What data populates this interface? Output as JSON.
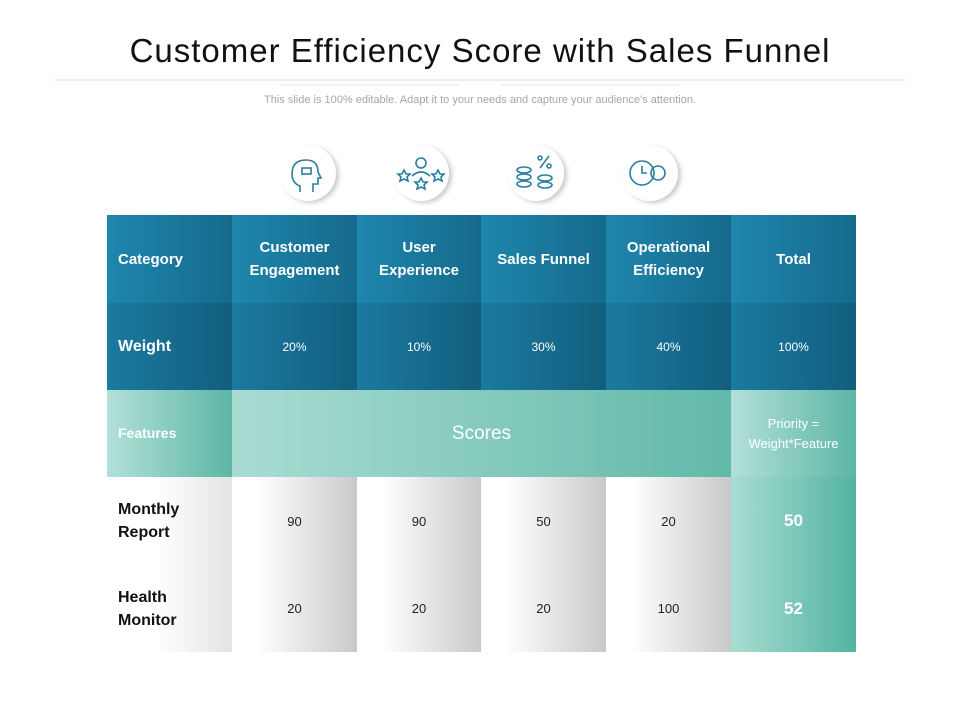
{
  "title": "Customer Efficiency Score with Sales Funnel",
  "subtitle": "This slide is 100% editable. Adapt it to your needs and capture your audience's attention.",
  "table": {
    "header": [
      "Category",
      "Customer Engagement",
      "User Experience",
      "Sales Funnel",
      "Operational Efficiency",
      "Total"
    ],
    "weight": {
      "label": "Weight",
      "values": [
        "20%",
        "10%",
        "30%",
        "40%",
        "100%"
      ]
    },
    "features": {
      "label": "Features",
      "scores": "Scores",
      "priority": "Priority = Weight*Feature"
    },
    "rows": [
      {
        "label": "Monthly Report",
        "scores": [
          "90",
          "90",
          "50",
          "20"
        ],
        "total": "50"
      },
      {
        "label": "Health Monitor",
        "scores": [
          "20",
          "20",
          "20",
          "100"
        ],
        "total": "52"
      }
    ]
  }
}
